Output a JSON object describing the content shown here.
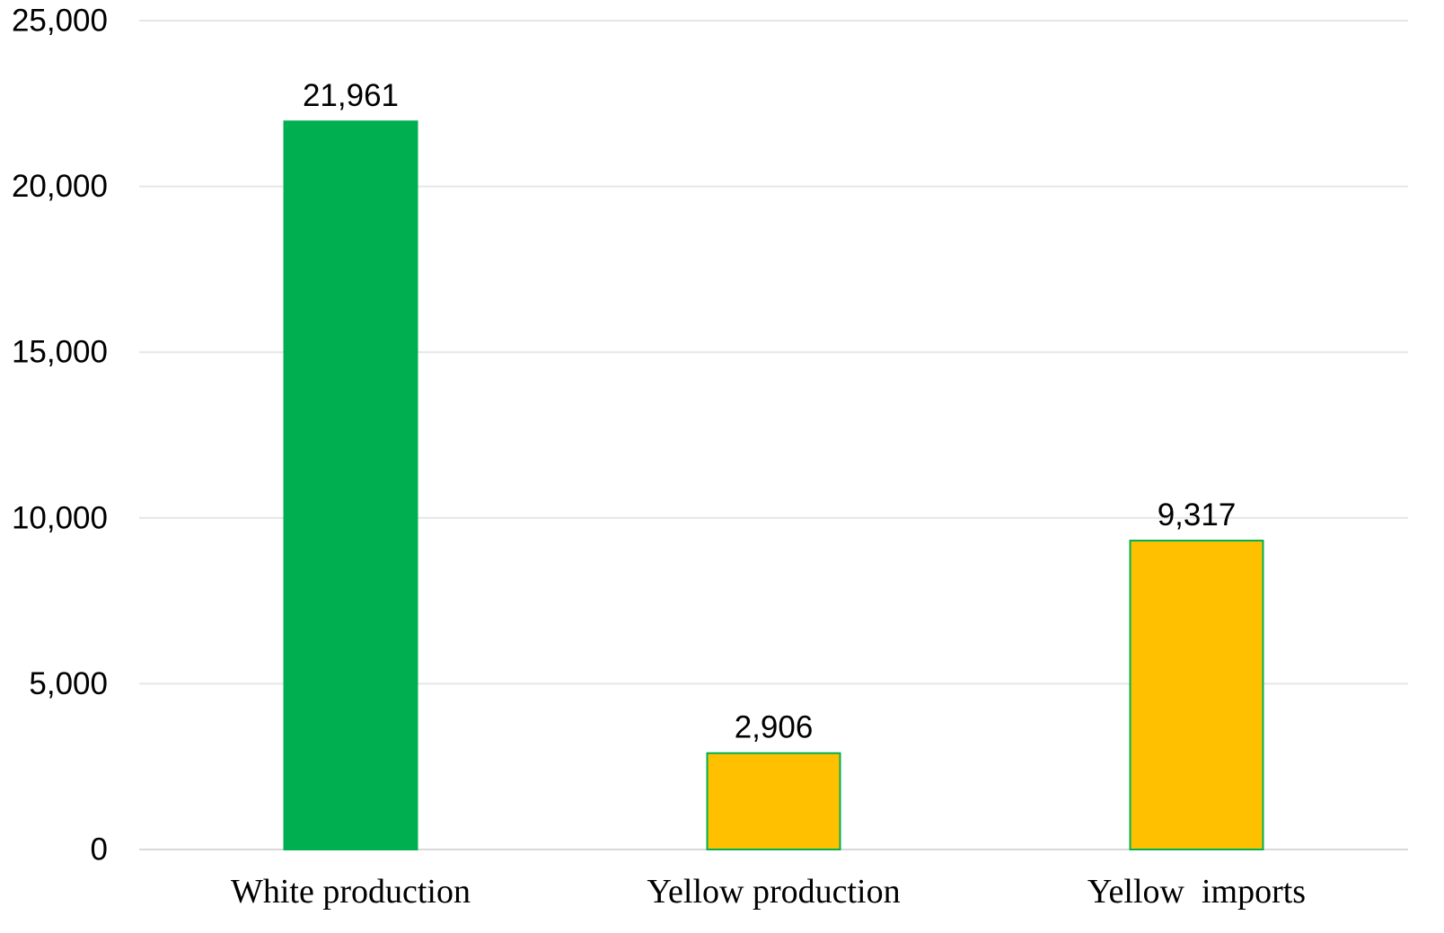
{
  "chart_data": {
    "type": "bar",
    "title": "",
    "xlabel": "",
    "ylabel": "",
    "categories": [
      "White production",
      "Yellow production",
      "Yellow  imports"
    ],
    "values": [
      21961,
      2906,
      9317
    ],
    "data_labels": [
      "21,961",
      "2,906",
      "9,317"
    ],
    "bar_colors": [
      "#00B050",
      "#FFC000",
      "#FFC000"
    ],
    "bar_outline_color": "#00B050",
    "ylim": [
      0,
      25000
    ],
    "yticks": [
      0,
      5000,
      10000,
      15000,
      20000,
      25000
    ],
    "ytick_labels": [
      "0",
      "5,000",
      "10,000",
      "15,000",
      "20,000",
      "25,000"
    ],
    "grid": true,
    "legend": "none"
  }
}
